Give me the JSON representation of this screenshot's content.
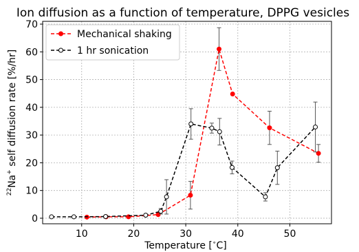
{
  "chart_data": {
    "type": "line",
    "title": "Ion diffusion as a function of temperature, DPPG vesicles",
    "xlabel": "Temperature [$^\\circ$C]",
    "xlabel_parts": {
      "main": "Temperature [",
      "degree": "∘",
      "unit": "C]"
    },
    "ylabel": "$^{22}$Na$^{+}$ self diffusion rate [%/hr]",
    "ylabel_parts": {
      "iso": "22",
      "elem": "Na",
      "charge": "+",
      "rest": " self diffusion rate [%/hr]"
    },
    "xlim": [
      2.5,
      58
    ],
    "ylim": [
      -2,
      71
    ],
    "xticks": [
      10,
      20,
      30,
      40,
      50
    ],
    "yticks": [
      0,
      10,
      20,
      30,
      40,
      50,
      60,
      70
    ],
    "grid": true,
    "legend_position": "top-left",
    "series": [
      {
        "name": "Mechanical shaking",
        "color": "#ff0000",
        "line_style": "dashed",
        "marker": "filled-circle",
        "x": [
          11,
          14.7,
          19,
          24.7,
          30.9,
          36.4,
          39,
          46.1,
          55.5
        ],
        "y": [
          0.4,
          0.5,
          0.5,
          1.3,
          8.3,
          61,
          44.8,
          32.6,
          23.4
        ],
        "err": [
          0,
          0,
          0,
          0,
          5,
          7.7,
          0,
          6,
          3.2
        ]
      },
      {
        "name": "1 hr sonication",
        "color": "#000000",
        "line_style": "dashed",
        "marker": "open-circle",
        "x": [
          4.2,
          8.5,
          14.6,
          22.3,
          25.2,
          26.3,
          31,
          35,
          36.5,
          38.9,
          45.3,
          47.6,
          54.9
        ],
        "y": [
          0.5,
          0.5,
          0.6,
          1.1,
          2.5,
          7.7,
          34,
          32.5,
          31.2,
          18.3,
          7.7,
          18.2,
          32.9
        ],
        "err": [
          0,
          0,
          0,
          0,
          1,
          6.2,
          5.5,
          1.8,
          4.8,
          2.3,
          1.5,
          6,
          9
        ]
      }
    ]
  }
}
